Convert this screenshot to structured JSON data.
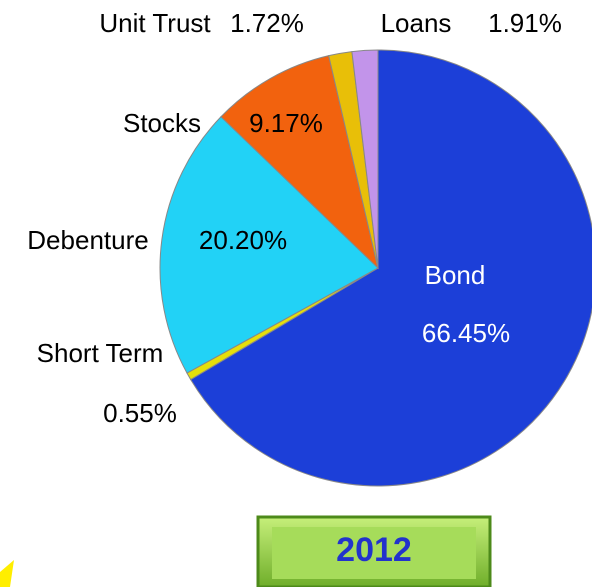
{
  "chart_data": {
    "type": "pie",
    "title": "2012",
    "categories": [
      "Bond",
      "Short Term",
      "Debenture",
      "Stocks",
      "Unit Trust",
      "Loans"
    ],
    "values": [
      66.45,
      0.55,
      20.2,
      9.17,
      1.72,
      1.91
    ],
    "value_labels": [
      "66.45%",
      "0.55%",
      "20.20%",
      "9.17%",
      "1.72%",
      "1.91%"
    ],
    "colors": [
      "#1c3fd8",
      "#e6df0a",
      "#22d2f6",
      "#f2620e",
      "#e8bf08",
      "#c294ea"
    ]
  }
}
